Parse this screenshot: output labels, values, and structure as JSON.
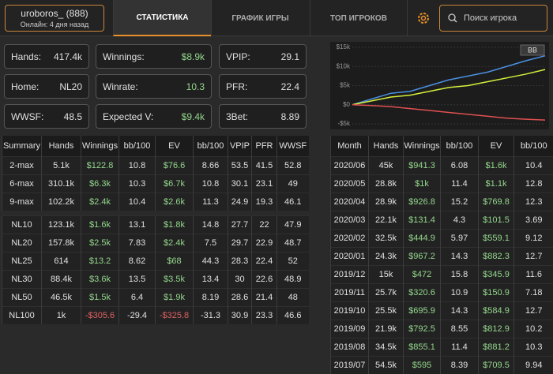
{
  "header": {
    "user": "uroboros_ (888)",
    "status": "Онлайн: 4 дня назад",
    "tabs": [
      "СТАТИСТИКА",
      "ГРАФИК ИГРЫ",
      "ТОП ИГРОКОВ"
    ],
    "search": "Поиск игрока"
  },
  "stats": [
    [
      "Hands:",
      "417.4k"
    ],
    [
      "Winnings:",
      "$8.9k"
    ],
    [
      "VPIP:",
      "29.1"
    ],
    [
      "Home:",
      "NL20"
    ],
    [
      "Winrate:",
      "10.3"
    ],
    [
      "PFR:",
      "22.4"
    ],
    [
      "WWSF:",
      "48.5"
    ],
    [
      "Expected V:",
      "$9.4k"
    ],
    [
      "3Bet:",
      "8.89"
    ]
  ],
  "summary_table": {
    "columns": [
      "Summary",
      "Hands",
      "Winnings",
      "bb/100",
      "EV",
      "bb/100",
      "VPIP",
      "PFR",
      "WWSF"
    ],
    "groups": [
      [
        [
          "2-max",
          "5.1k",
          "$122.8",
          "10.8",
          "$76.6",
          "8.66",
          "53.5",
          "41.5",
          "52.8"
        ],
        [
          "6-max",
          "310.1k",
          "$6.3k",
          "10.3",
          "$6.7k",
          "10.8",
          "30.1",
          "23.1",
          "49"
        ],
        [
          "9-max",
          "102.2k",
          "$2.4k",
          "10.4",
          "$2.6k",
          "11.3",
          "24.9",
          "19.3",
          "46.1"
        ]
      ],
      [
        [
          "NL10",
          "123.1k",
          "$1.6k",
          "13.1",
          "$1.8k",
          "14.8",
          "27.7",
          "22",
          "47.9"
        ],
        [
          "NL20",
          "157.8k",
          "$2.5k",
          "7.83",
          "$2.4k",
          "7.5",
          "29.7",
          "22.9",
          "48.7"
        ],
        [
          "NL25",
          "614",
          "$13.2",
          "8.62",
          "$68",
          "44.3",
          "28.3",
          "22.4",
          "52"
        ],
        [
          "NL30",
          "88.4k",
          "$3.6k",
          "13.5",
          "$3.5k",
          "13.4",
          "30",
          "22.6",
          "48.9"
        ],
        [
          "NL50",
          "46.5k",
          "$1.5k",
          "6.4",
          "$1.9k",
          "8.19",
          "28.6",
          "21.4",
          "48"
        ],
        [
          "NL100",
          "1k",
          "-$305.6",
          "-29.4",
          "-$325.8",
          "-31.3",
          "30.9",
          "23.3",
          "46.6"
        ]
      ]
    ]
  },
  "month_table": {
    "columns": [
      "Month",
      "Hands",
      "Winnings",
      "bb/100",
      "EV",
      "bb/100"
    ],
    "rows": [
      [
        "2020/06",
        "45k",
        "$941.3",
        "6.08",
        "$1.6k",
        "10.4"
      ],
      [
        "2020/05",
        "28.8k",
        "$1k",
        "11.4",
        "$1.1k",
        "12.8"
      ],
      [
        "2020/04",
        "28.9k",
        "$926.8",
        "15.2",
        "$769.8",
        "12.3"
      ],
      [
        "2020/03",
        "22.1k",
        "$131.4",
        "4.3",
        "$101.5",
        "3.69"
      ],
      [
        "2020/02",
        "32.5k",
        "$444.9",
        "5.97",
        "$559.1",
        "9.12"
      ],
      [
        "2020/01",
        "24.3k",
        "$967.2",
        "14.3",
        "$882.3",
        "12.7"
      ],
      [
        "2019/12",
        "15k",
        "$472",
        "15.8",
        "$345.9",
        "11.6"
      ],
      [
        "2019/11",
        "25.7k",
        "$320.6",
        "10.9",
        "$150.9",
        "7.18"
      ],
      [
        "2019/10",
        "25.5k",
        "$695.9",
        "14.3",
        "$584.9",
        "12.7"
      ],
      [
        "2019/09",
        "21.9k",
        "$792.5",
        "8.55",
        "$812.9",
        "10.2"
      ],
      [
        "2019/08",
        "34.5k",
        "$855.1",
        "11.4",
        "$881.2",
        "10.3"
      ],
      [
        "2019/07",
        "54.5k",
        "$595",
        "8.39",
        "$709.5",
        "9.94"
      ]
    ]
  },
  "chart_data": {
    "type": "line",
    "legend": "BB",
    "ylim": [
      -5000,
      15000
    ],
    "yticks": [
      {
        "value": 15000,
        "label": "$15k"
      },
      {
        "value": 10000,
        "label": "$10k"
      },
      {
        "value": 5000,
        "label": "$5k"
      },
      {
        "value": 0,
        "label": "$0"
      },
      {
        "value": -5000,
        "label": "-$5k"
      }
    ],
    "series": [
      {
        "color": "#4a90e2",
        "values": [
          0,
          1500,
          3000,
          3500,
          5000,
          6500,
          7500,
          8500,
          10000,
          11500,
          12800
        ]
      },
      {
        "color": "#d6f03a",
        "values": [
          0,
          1000,
          2000,
          2500,
          3500,
          4500,
          5000,
          6000,
          7000,
          8000,
          9200
        ]
      },
      {
        "color": "#e05050",
        "values": [
          0,
          -200,
          -500,
          -1000,
          -1500,
          -2000,
          -2500,
          -3000,
          -3500,
          -3800,
          -4000
        ]
      }
    ]
  }
}
